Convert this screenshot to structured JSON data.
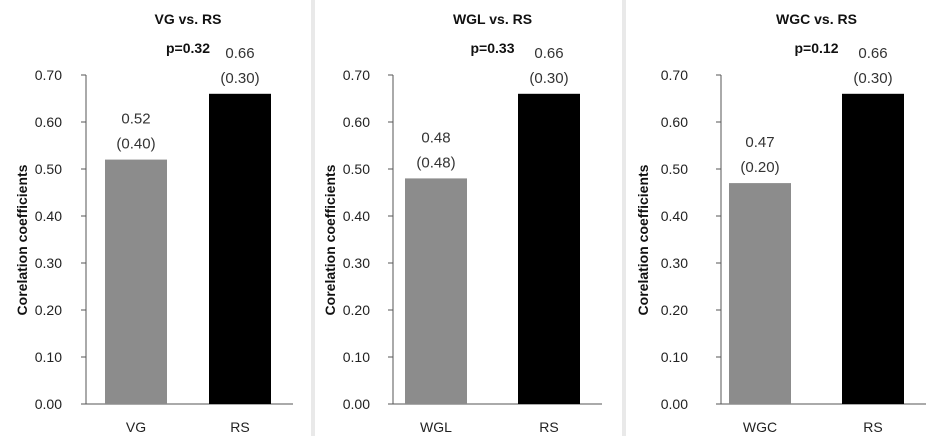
{
  "chart_data": [
    {
      "type": "bar",
      "title": "VG vs. RS",
      "subtitle": "p=0.32",
      "ylabel": "Corelation coefficients",
      "xlabel": "",
      "ylim": [
        0,
        0.7
      ],
      "yticks": [
        "0.00",
        "0.10",
        "0.20",
        "0.30",
        "0.40",
        "0.50",
        "0.60",
        "0.70"
      ],
      "categories": [
        "VG",
        "RS"
      ],
      "values": [
        0.52,
        0.66
      ],
      "value_labels": [
        "0.52",
        "0.66"
      ],
      "sub_labels": [
        "(0.40)",
        "(0.30)"
      ],
      "colors": [
        "#8c8c8c",
        "#000000"
      ],
      "grid": false,
      "legend": "none"
    },
    {
      "type": "bar",
      "title": "WGL vs. RS",
      "subtitle": "p=0.33",
      "ylabel": "Corelation coefficients",
      "xlabel": "",
      "ylim": [
        0,
        0.7
      ],
      "yticks": [
        "0.00",
        "0.10",
        "0.20",
        "0.30",
        "0.40",
        "0.50",
        "0.60",
        "0.70"
      ],
      "categories": [
        "WGL",
        "RS"
      ],
      "values": [
        0.48,
        0.66
      ],
      "value_labels": [
        "0.48",
        "0.66"
      ],
      "sub_labels": [
        "(0.48)",
        "(0.30)"
      ],
      "colors": [
        "#8c8c8c",
        "#000000"
      ],
      "grid": false,
      "legend": "none"
    },
    {
      "type": "bar",
      "title": "WGC vs. RS",
      "subtitle": "p=0.12",
      "ylabel": "Corelation coefficients",
      "xlabel": "",
      "ylim": [
        0,
        0.7
      ],
      "yticks": [
        "0.00",
        "0.10",
        "0.20",
        "0.30",
        "0.40",
        "0.50",
        "0.60",
        "0.70"
      ],
      "categories": [
        "WGC",
        "RS"
      ],
      "values": [
        0.47,
        0.66
      ],
      "value_labels": [
        "0.47",
        "0.66"
      ],
      "sub_labels": [
        "(0.20)",
        "(0.30)"
      ],
      "colors": [
        "#8c8c8c",
        "#000000"
      ],
      "grid": false,
      "legend": "none"
    }
  ]
}
